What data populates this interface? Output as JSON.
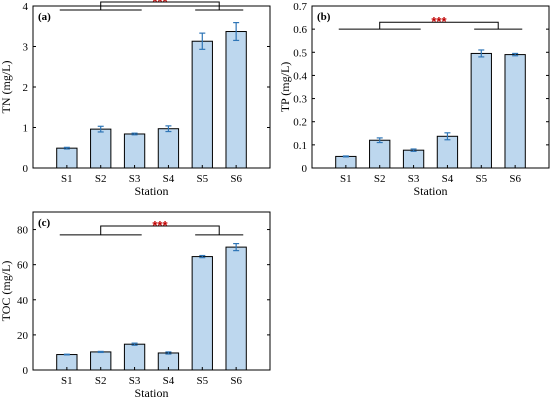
{
  "colors": {
    "bar_fill": "#bdd7ee",
    "bar_stroke": "#000000",
    "error_bar": "#2e75b6",
    "significance": "#c00000",
    "bracket": "#000000"
  },
  "chart_data": [
    {
      "type": "bar",
      "panel_label": "(a)",
      "categories": [
        "S1",
        "S2",
        "S3",
        "S4",
        "S5",
        "S6"
      ],
      "values": [
        0.49,
        0.96,
        0.84,
        0.97,
        3.13,
        3.37
      ],
      "errors": [
        0.02,
        0.07,
        0.02,
        0.07,
        0.2,
        0.22
      ],
      "xlabel": "Station",
      "ylabel": "TN (mg/L)",
      "ylim": [
        0,
        4
      ],
      "yticks": [
        0,
        1,
        2,
        3,
        4
      ],
      "ytick_labels": [
        "0",
        "1",
        "2",
        "3",
        "4"
      ],
      "significance": {
        "text": "***",
        "bracket_level": 3.9,
        "top_level": 4.1
      }
    },
    {
      "type": "bar",
      "panel_label": "(b)",
      "categories": [
        "S1",
        "S2",
        "S3",
        "S4",
        "S5",
        "S6"
      ],
      "values": [
        0.05,
        0.12,
        0.077,
        0.137,
        0.495,
        0.49
      ],
      "errors": [
        0.002,
        0.01,
        0.005,
        0.015,
        0.015,
        0.005
      ],
      "xlabel": "Station",
      "ylabel": "TP (mg/L)",
      "ylim": [
        0,
        0.7
      ],
      "yticks": [
        0,
        0.1,
        0.2,
        0.3,
        0.4,
        0.5,
        0.6,
        0.7
      ],
      "ytick_labels": [
        "0",
        "0.1",
        "0.2",
        "0.3",
        "0.4",
        "0.5",
        "0.6",
        "0.7"
      ],
      "significance": {
        "text": "***",
        "bracket_level": 0.6,
        "top_level": 0.63
      }
    },
    {
      "type": "bar",
      "panel_label": "(c)",
      "categories": [
        "S1",
        "S2",
        "S3",
        "S4",
        "S5",
        "S6"
      ],
      "values": [
        8.8,
        10.3,
        14.7,
        9.7,
        64.6,
        70.0
      ],
      "errors": [
        0.2,
        0.3,
        0.6,
        0.6,
        0.6,
        2.0
      ],
      "xlabel": "Station",
      "ylabel": "TOC (mg/L)",
      "ylim": [
        0,
        90
      ],
      "yticks": [
        0,
        20,
        40,
        60,
        80
      ],
      "ytick_labels": [
        "0",
        "20",
        "40",
        "60",
        "80"
      ],
      "significance": {
        "text": "***",
        "bracket_level": 77,
        "top_level": 82
      }
    }
  ]
}
